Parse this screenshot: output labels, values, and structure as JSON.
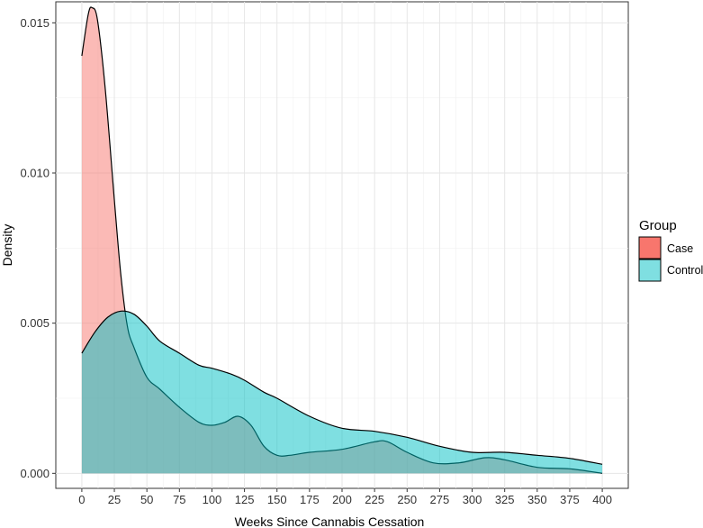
{
  "chart_data": {
    "type": "area",
    "title": "",
    "xlabel": "Weeks Since Cannabis Cessation",
    "ylabel": "Density",
    "xlim": [
      -20,
      420
    ],
    "ylim": [
      -0.0005,
      0.0157
    ],
    "grid": true,
    "x_ticks": [
      0,
      25,
      50,
      75,
      100,
      125,
      150,
      175,
      200,
      225,
      250,
      275,
      300,
      325,
      350,
      375,
      400
    ],
    "y_ticks": [
      0.0,
      0.005,
      0.01,
      0.015
    ],
    "y_tick_labels": [
      "0.000",
      "0.005",
      "0.010",
      "0.015"
    ],
    "legend": {
      "title": "Group",
      "position": "right",
      "entries": [
        {
          "label": "Case",
          "color": "#F8766D"
        },
        {
          "label": "Control",
          "color": "#00BFC4"
        }
      ]
    },
    "series": [
      {
        "name": "Case",
        "color": "#F8766D",
        "x": [
          0,
          5,
          8,
          12,
          18,
          25,
          30,
          35,
          40,
          50,
          60,
          75,
          90,
          100,
          110,
          120,
          130,
          140,
          150,
          160,
          175,
          200,
          225,
          235,
          250,
          270,
          290,
          310,
          325,
          350,
          375,
          400
        ],
        "y": [
          0.0139,
          0.0153,
          0.0155,
          0.0151,
          0.0128,
          0.0091,
          0.0066,
          0.0049,
          0.0042,
          0.0032,
          0.0028,
          0.0022,
          0.0017,
          0.0016,
          0.0017,
          0.0019,
          0.0016,
          0.0009,
          0.0006,
          0.0006,
          0.0007,
          0.0008,
          0.00105,
          0.00105,
          0.0007,
          0.00035,
          0.00035,
          0.00052,
          0.00045,
          0.0002,
          0.00015,
          0.0
        ]
      },
      {
        "name": "Control",
        "color": "#00BFC4",
        "x": [
          0,
          10,
          20,
          30,
          40,
          50,
          60,
          75,
          90,
          100,
          115,
          125,
          140,
          150,
          175,
          200,
          225,
          250,
          275,
          300,
          325,
          350,
          375,
          400
        ],
        "y": [
          0.004,
          0.0047,
          0.0052,
          0.0054,
          0.0053,
          0.0049,
          0.0044,
          0.004,
          0.0036,
          0.0035,
          0.0033,
          0.0031,
          0.0027,
          0.0025,
          0.0019,
          0.0015,
          0.0014,
          0.0012,
          0.0009,
          0.0007,
          0.0007,
          0.0006,
          0.0005,
          0.0003
        ]
      }
    ]
  }
}
